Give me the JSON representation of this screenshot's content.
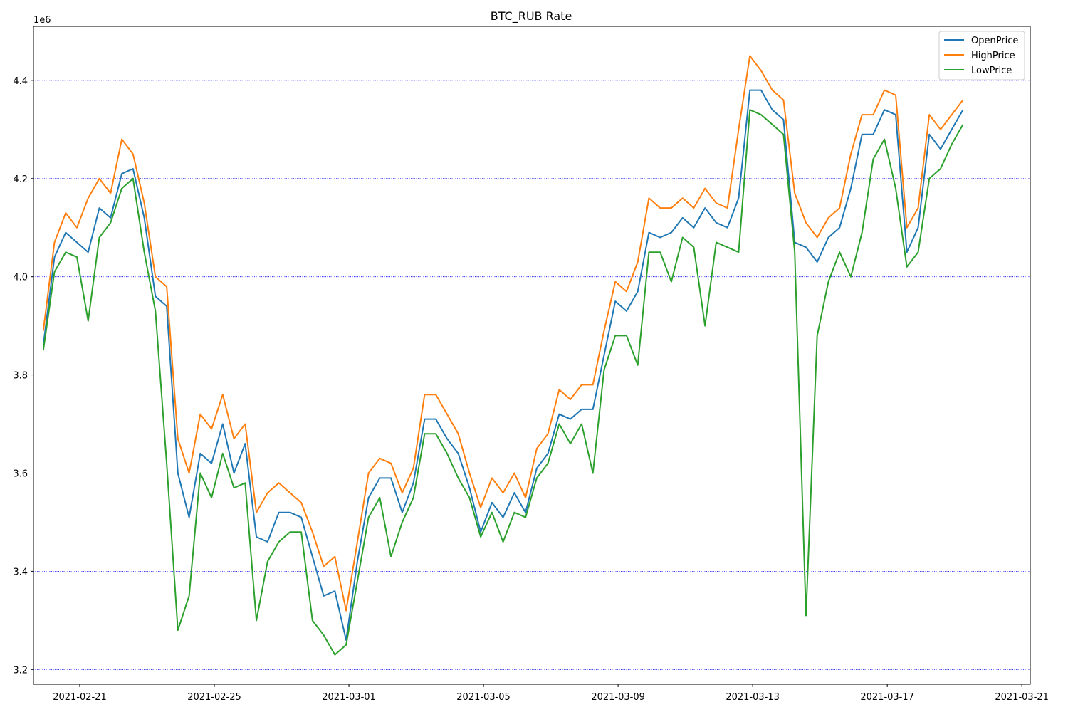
{
  "chart_data": {
    "type": "line",
    "title": "BTC_RUB Rate",
    "xlabel": "",
    "ylabel": "",
    "y_offset_label": "1e6",
    "x_axis": {
      "range": [
        "2021-02-19T15:00",
        "2021-03-21T06:00"
      ],
      "ticks": [
        "2021-02-21",
        "2021-02-25",
        "2021-03-01",
        "2021-03-05",
        "2021-03-09",
        "2021-03-13",
        "2021-03-17",
        "2021-03-21"
      ]
    },
    "y_axis": {
      "range": [
        3.17,
        4.51
      ],
      "ticks": [
        3.2,
        3.4,
        3.6,
        3.8,
        4.0,
        4.2,
        4.4
      ],
      "tick_labels": [
        "3.2",
        "3.4",
        "3.6",
        "3.8",
        "4.0",
        "4.2",
        "4.4"
      ],
      "grid": true,
      "grid_style": "dotted",
      "grid_color": "#0000ff"
    },
    "legend": {
      "position": "top-right"
    },
    "x": [
      "2021-02-19T22:00",
      "2021-02-20T06:00",
      "2021-02-20T14:00",
      "2021-02-20T22:00",
      "2021-02-21T06:00",
      "2021-02-21T14:00",
      "2021-02-21T22:00",
      "2021-02-22T06:00",
      "2021-02-22T14:00",
      "2021-02-22T22:00",
      "2021-02-23T06:00",
      "2021-02-23T14:00",
      "2021-02-23T22:00",
      "2021-02-24T06:00",
      "2021-02-24T14:00",
      "2021-02-24T22:00",
      "2021-02-25T06:00",
      "2021-02-25T14:00",
      "2021-02-25T22:00",
      "2021-02-26T06:00",
      "2021-02-26T14:00",
      "2021-02-26T22:00",
      "2021-02-27T06:00",
      "2021-02-27T14:00",
      "2021-02-27T22:00",
      "2021-02-28T06:00",
      "2021-02-28T14:00",
      "2021-02-28T22:00",
      "2021-03-01T06:00",
      "2021-03-01T14:00",
      "2021-03-01T22:00",
      "2021-03-02T06:00",
      "2021-03-02T14:00",
      "2021-03-02T22:00",
      "2021-03-03T06:00",
      "2021-03-03T14:00",
      "2021-03-03T22:00",
      "2021-03-04T06:00",
      "2021-03-04T14:00",
      "2021-03-04T22:00",
      "2021-03-05T06:00",
      "2021-03-05T14:00",
      "2021-03-05T22:00",
      "2021-03-06T06:00",
      "2021-03-06T14:00",
      "2021-03-06T22:00",
      "2021-03-07T06:00",
      "2021-03-07T14:00",
      "2021-03-07T22:00",
      "2021-03-08T06:00",
      "2021-03-08T14:00",
      "2021-03-08T22:00",
      "2021-03-09T06:00",
      "2021-03-09T14:00",
      "2021-03-09T22:00",
      "2021-03-10T06:00",
      "2021-03-10T14:00",
      "2021-03-10T22:00",
      "2021-03-11T06:00",
      "2021-03-11T14:00",
      "2021-03-11T22:00",
      "2021-03-12T06:00",
      "2021-03-12T14:00",
      "2021-03-12T22:00",
      "2021-03-13T06:00",
      "2021-03-13T14:00",
      "2021-03-13T22:00",
      "2021-03-14T06:00",
      "2021-03-14T14:00",
      "2021-03-14T22:00",
      "2021-03-15T06:00",
      "2021-03-15T14:00",
      "2021-03-15T22:00",
      "2021-03-16T06:00",
      "2021-03-16T14:00",
      "2021-03-16T22:00",
      "2021-03-17T06:00",
      "2021-03-17T14:00",
      "2021-03-17T22:00",
      "2021-03-18T06:00",
      "2021-03-18T14:00",
      "2021-03-18T22:00",
      "2021-03-19T06:00"
    ],
    "series": [
      {
        "name": "OpenPrice",
        "color": "#1f77b4",
        "values": [
          3.86,
          4.04,
          4.09,
          4.07,
          4.05,
          4.14,
          4.12,
          4.21,
          4.22,
          4.12,
          3.96,
          3.94,
          3.6,
          3.51,
          3.64,
          3.62,
          3.7,
          3.6,
          3.66,
          3.47,
          3.46,
          3.52,
          3.52,
          3.51,
          3.43,
          3.35,
          3.36,
          3.26,
          3.42,
          3.55,
          3.59,
          3.59,
          3.52,
          3.58,
          3.71,
          3.71,
          3.67,
          3.64,
          3.57,
          3.48,
          3.54,
          3.51,
          3.56,
          3.52,
          3.61,
          3.64,
          3.72,
          3.71,
          3.73,
          3.73,
          3.84,
          3.95,
          3.93,
          3.97,
          4.09,
          4.08,
          4.09,
          4.12,
          4.1,
          4.14,
          4.11,
          4.1,
          4.16,
          4.38,
          4.38,
          4.34,
          4.32,
          4.07,
          4.06,
          4.03,
          4.08,
          4.1,
          4.18,
          4.29,
          4.29,
          4.34,
          4.33,
          4.05,
          4.1,
          4.29,
          4.26,
          4.3,
          4.34
        ]
      },
      {
        "name": "HighPrice",
        "color": "#ff7f0e",
        "values": [
          3.89,
          4.07,
          4.13,
          4.1,
          4.16,
          4.2,
          4.17,
          4.28,
          4.25,
          4.15,
          4.0,
          3.98,
          3.67,
          3.6,
          3.72,
          3.69,
          3.76,
          3.67,
          3.7,
          3.52,
          3.56,
          3.58,
          3.56,
          3.54,
          3.48,
          3.41,
          3.43,
          3.32,
          3.46,
          3.6,
          3.63,
          3.62,
          3.56,
          3.61,
          3.76,
          3.76,
          3.72,
          3.68,
          3.6,
          3.53,
          3.59,
          3.56,
          3.6,
          3.55,
          3.65,
          3.68,
          3.77,
          3.75,
          3.78,
          3.78,
          3.89,
          3.99,
          3.97,
          4.03,
          4.16,
          4.14,
          4.14,
          4.16,
          4.14,
          4.18,
          4.15,
          4.14,
          4.3,
          4.45,
          4.42,
          4.38,
          4.36,
          4.17,
          4.11,
          4.08,
          4.12,
          4.14,
          4.25,
          4.33,
          4.33,
          4.38,
          4.37,
          4.1,
          4.14,
          4.33,
          4.3,
          4.33,
          4.36
        ]
      },
      {
        "name": "LowPrice",
        "color": "#2ca02c",
        "values": [
          3.85,
          4.01,
          4.05,
          4.04,
          3.91,
          4.08,
          4.11,
          4.18,
          4.2,
          4.05,
          3.93,
          3.62,
          3.28,
          3.35,
          3.6,
          3.55,
          3.64,
          3.57,
          3.58,
          3.3,
          3.42,
          3.46,
          3.48,
          3.48,
          3.3,
          3.27,
          3.23,
          3.25,
          3.38,
          3.51,
          3.55,
          3.43,
          3.5,
          3.55,
          3.68,
          3.68,
          3.64,
          3.59,
          3.55,
          3.47,
          3.52,
          3.46,
          3.52,
          3.51,
          3.59,
          3.62,
          3.7,
          3.66,
          3.7,
          3.6,
          3.81,
          3.88,
          3.88,
          3.82,
          4.05,
          4.05,
          3.99,
          4.08,
          4.06,
          3.9,
          4.07,
          4.06,
          4.05,
          4.34,
          4.33,
          4.31,
          4.29,
          4.05,
          3.31,
          3.88,
          3.99,
          4.05,
          4.0,
          4.09,
          4.24,
          4.28,
          4.18,
          4.02,
          4.05,
          4.2,
          4.22,
          4.27,
          4.31
        ]
      }
    ]
  }
}
